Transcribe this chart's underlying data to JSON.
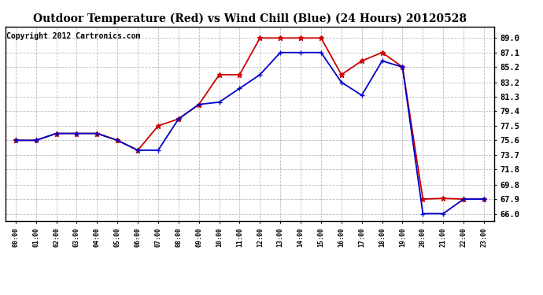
{
  "title": "Outdoor Temperature (Red) vs Wind Chill (Blue) (24 Hours) 20120528",
  "copyright": "Copyright 2012 Cartronics.com",
  "x_labels": [
    "00:00",
    "01:00",
    "02:00",
    "03:00",
    "04:00",
    "05:00",
    "06:00",
    "07:00",
    "08:00",
    "09:00",
    "10:00",
    "11:00",
    "12:00",
    "13:00",
    "14:00",
    "15:00",
    "16:00",
    "17:00",
    "18:00",
    "19:00",
    "20:00",
    "21:00",
    "22:00",
    "23:00"
  ],
  "temp_red": [
    75.6,
    75.6,
    76.5,
    76.5,
    76.5,
    75.6,
    74.3,
    77.5,
    78.4,
    80.3,
    84.2,
    84.2,
    89.0,
    89.0,
    89.0,
    89.0,
    84.2,
    86.0,
    87.1,
    85.2,
    67.9,
    68.0,
    67.9,
    67.9
  ],
  "wind_blue": [
    75.6,
    75.6,
    76.5,
    76.5,
    76.5,
    75.6,
    74.3,
    74.3,
    78.4,
    80.3,
    80.6,
    82.4,
    84.2,
    87.1,
    87.1,
    87.1,
    83.2,
    81.5,
    86.0,
    85.2,
    66.0,
    66.0,
    67.9,
    67.9
  ],
  "y_ticks": [
    66.0,
    67.9,
    69.8,
    71.8,
    73.7,
    75.6,
    77.5,
    79.4,
    81.3,
    83.2,
    85.2,
    87.1,
    89.0
  ],
  "y_min": 65.0,
  "y_max": 90.5,
  "bg_color": "#ffffff",
  "grid_color": "#aaaaaa",
  "red_color": "#cc0000",
  "blue_color": "#0000cc",
  "title_fontsize": 10,
  "copyright_fontsize": 7
}
